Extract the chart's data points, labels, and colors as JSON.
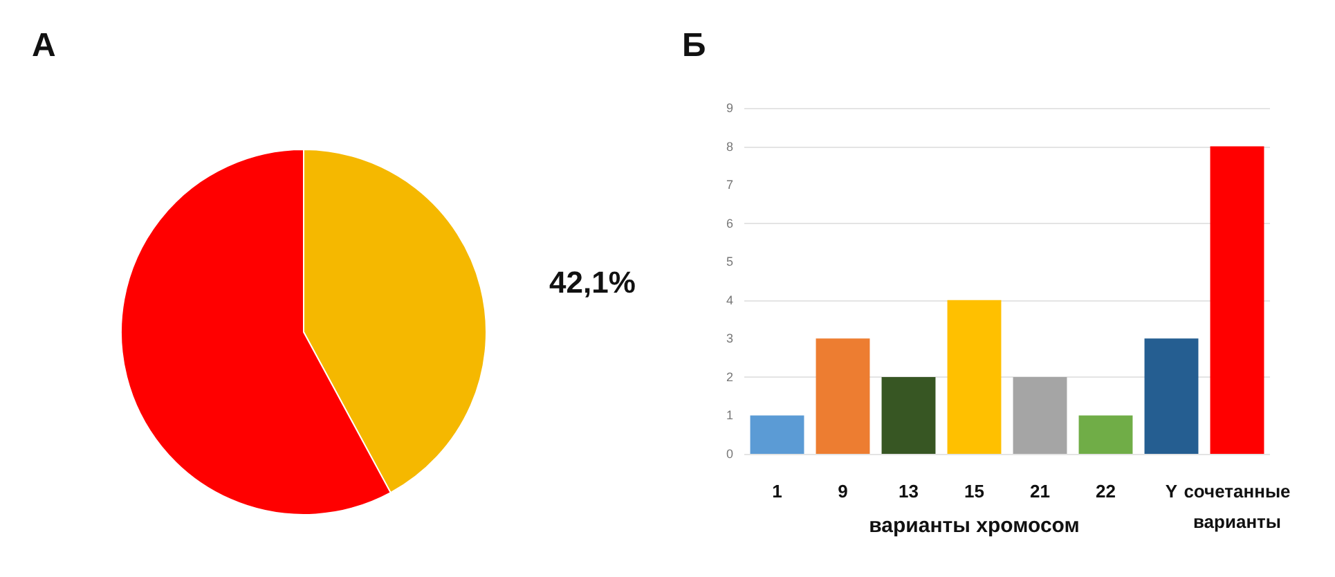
{
  "chart_data": [
    {
      "type": "pie",
      "title": "А",
      "categories": [
        null,
        null
      ],
      "values": [
        42.1,
        57.9
      ],
      "colors": [
        "#f5b800",
        "#ff0000"
      ],
      "value_labels": [
        "42,1%",
        null
      ]
    },
    {
      "type": "bar",
      "title": "Б",
      "xlabel": "варианты хромосом",
      "categories": [
        "1",
        "9",
        "13",
        "15",
        "21",
        "22",
        "Y",
        "сочетанные варианты"
      ],
      "values": [
        1,
        3,
        2,
        4,
        2,
        1,
        3,
        8
      ],
      "colors": [
        "#5b9bd5",
        "#ed7d31",
        "#375623",
        "#ffc000",
        "#a5a5a5",
        "#70ad47",
        "#255e91",
        "#ff0000"
      ],
      "ylim": [
        0,
        9
      ],
      "yticks": [
        0,
        1,
        2,
        3,
        4,
        5,
        6,
        7,
        8,
        9
      ],
      "grid": "y"
    }
  ]
}
